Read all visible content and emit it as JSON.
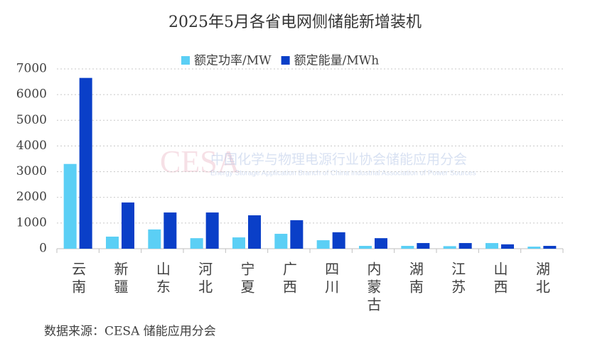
{
  "chart_data": {
    "type": "bar",
    "title": "2025年5月各省电网侧储能新增装机",
    "categories": [
      "云南",
      "新疆",
      "山东",
      "河北",
      "宁夏",
      "广西",
      "四川",
      "内蒙古",
      "湖南",
      "江苏",
      "山西",
      "湖北"
    ],
    "series": [
      {
        "name": "额定功率/MW",
        "color": "#5bcff5",
        "values": [
          3300,
          470,
          750,
          410,
          440,
          580,
          330,
          110,
          110,
          100,
          220,
          80
        ]
      },
      {
        "name": "额定能量/MWh",
        "color": "#0a3fc8",
        "values": [
          6650,
          1800,
          1410,
          1410,
          1300,
          1110,
          640,
          410,
          220,
          220,
          170,
          110
        ]
      }
    ],
    "ylim": [
      0,
      7000
    ],
    "yticks": [
      0,
      1000,
      2000,
      3000,
      4000,
      5000,
      6000,
      7000
    ],
    "grid": true,
    "watermark": {
      "logo": "CESA",
      "name": "中国化学与物理电源行业协会储能应用分会",
      "english": "Energy Storage Application Branch of China Industrial Association of Power Sources"
    },
    "source": "数据来源：CESA 储能应用分会"
  }
}
